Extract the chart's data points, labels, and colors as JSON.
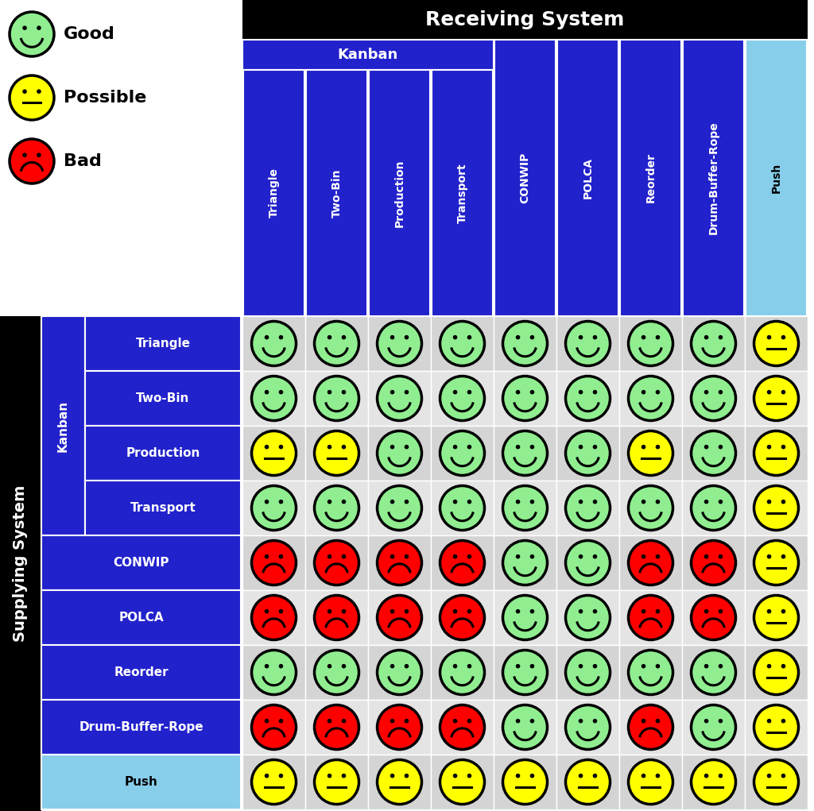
{
  "title_receiving": "Receiving System",
  "title_supplying": "Supplying System",
  "col_headers": [
    "Triangle",
    "Two-Bin",
    "Production",
    "Transport",
    "CONWIP",
    "POLCA",
    "Reorder",
    "Drum-Buffer-Rope",
    "Push"
  ],
  "row_headers": [
    "Triangle",
    "Two-Bin",
    "Production",
    "Transport",
    "CONWIP",
    "POLCA",
    "Reorder",
    "Drum-Buffer-Rope",
    "Push"
  ],
  "kanban_col_label": "Kanban",
  "kanban_row_label": "Kanban",
  "col_is_push": [
    false,
    false,
    false,
    false,
    false,
    false,
    false,
    false,
    true
  ],
  "row_is_push": [
    false,
    false,
    false,
    false,
    false,
    false,
    false,
    false,
    true
  ],
  "grid": [
    [
      "G",
      "G",
      "G",
      "G",
      "G",
      "G",
      "G",
      "G",
      "P"
    ],
    [
      "G",
      "G",
      "G",
      "G",
      "G",
      "G",
      "G",
      "G",
      "P"
    ],
    [
      "P",
      "P",
      "G",
      "G",
      "G",
      "G",
      "P",
      "G",
      "P"
    ],
    [
      "G",
      "G",
      "G",
      "G",
      "G",
      "G",
      "G",
      "G",
      "P"
    ],
    [
      "B",
      "B",
      "B",
      "B",
      "G",
      "G",
      "B",
      "B",
      "P"
    ],
    [
      "B",
      "B",
      "B",
      "B",
      "G",
      "G",
      "B",
      "B",
      "P"
    ],
    [
      "G",
      "G",
      "G",
      "G",
      "G",
      "G",
      "G",
      "G",
      "P"
    ],
    [
      "B",
      "B",
      "B",
      "B",
      "G",
      "G",
      "B",
      "G",
      "P"
    ],
    [
      "P",
      "P",
      "P",
      "P",
      "P",
      "P",
      "P",
      "P",
      "P"
    ]
  ],
  "good_color": "#90EE90",
  "possible_color": "#FFFF00",
  "bad_color": "#FF0000",
  "blue_dark": "#2222CC",
  "push_blue": "#87CEEB",
  "black": "#000000",
  "white": "#FFFFFF"
}
